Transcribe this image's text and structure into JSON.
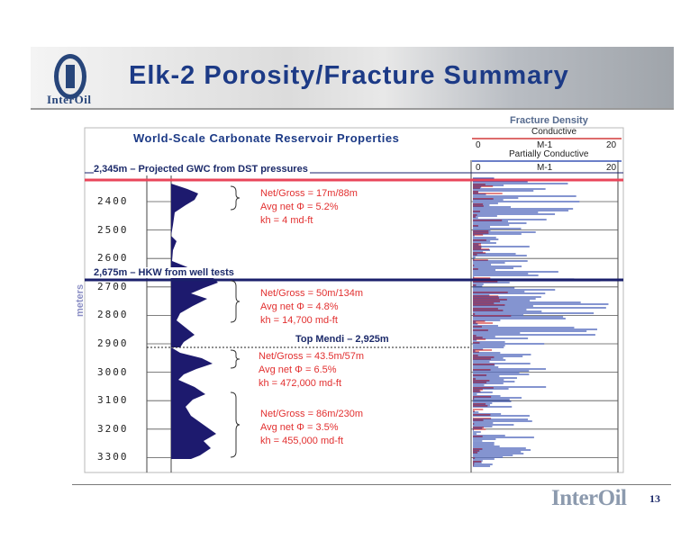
{
  "header": {
    "title": "Elk-2 Porosity/Fracture Summary",
    "logo_text": "InterOil"
  },
  "subtitle": "World-Scale Carbonate Reservoir Properties",
  "depth_axis": {
    "label": "meters",
    "ticks": [
      "2400",
      "2500",
      "2600",
      "2700",
      "2800",
      "2900",
      "3000",
      "3100",
      "3200",
      "3300"
    ]
  },
  "markers": {
    "gwc": "2,345m – Projected GWC from DST pressures",
    "hkw": "2,675m – HKW from well tests",
    "top_mendi": "Top Mendi – 2,925m"
  },
  "zones": [
    {
      "net_gross": "Net/Gross = 17m/88m",
      "avg_net": "Avg net Φ = 5.2%",
      "kh": "kh = 4 md-ft"
    },
    {
      "net_gross": "Net/Gross = 50m/134m",
      "avg_net": "Avg net Φ = 4.8%",
      "kh": "kh = 14,700 md-ft"
    },
    {
      "net_gross": "Net/Gross = 43.5m/57m",
      "avg_net": "Avg net Φ = 6.5%",
      "kh": "kh = 472,000 md-ft"
    },
    {
      "net_gross": "Net/Gross = 86m/230m",
      "avg_net": "Avg net Φ = 3.5%",
      "kh": "kh = 455,000 md-ft"
    }
  ],
  "fracture_density": {
    "title": "Fracture Density",
    "conductive": {
      "label": "Conductive",
      "min": "0",
      "mid": "M-1",
      "max": "20"
    },
    "partially_conductive": {
      "label": "Partially Conductive",
      "min": "0",
      "mid": "M-1",
      "max": "20"
    }
  },
  "footer": {
    "logo_text": "InterOil",
    "page_number": "13"
  },
  "colors": {
    "title_blue": "#1c3a86",
    "gwc_line": "#e8455a",
    "hkw_line": "#1a1f6b",
    "porosity_fill": "#1d1a6e",
    "annotation_red": "#e23030",
    "conductive_red": "#d23a3a",
    "partial_blue": "#3a55b5"
  }
}
